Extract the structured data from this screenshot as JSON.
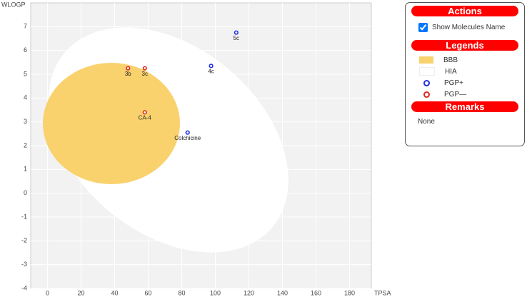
{
  "chart_data": {
    "type": "scatter",
    "xlabel": "TPSA",
    "ylabel": "WLOGP",
    "xlim": [
      -10,
      193
    ],
    "ylim": [
      -4,
      8
    ],
    "xticks": [
      0,
      20,
      40,
      60,
      80,
      100,
      120,
      140,
      160,
      180
    ],
    "yticks": [
      -4,
      -3,
      -2,
      -1,
      0,
      1,
      2,
      3,
      4,
      5,
      6,
      7
    ],
    "grid": true,
    "regions": [
      {
        "name": "BBB",
        "color": "#f9d26e"
      },
      {
        "name": "HIA",
        "color": "#ffffff"
      }
    ],
    "series": [
      {
        "name": "PGP+",
        "color": "#1f2fe0",
        "x": [
          112.5,
          97.5,
          83.5
        ],
        "values": [
          6.75,
          5.35,
          2.55
        ],
        "labels": [
          "5c",
          "4c",
          "Colchicine"
        ]
      },
      {
        "name": "PGP—",
        "color": "#e0281f",
        "x": [
          48,
          58,
          58
        ],
        "values": [
          5.25,
          5.25,
          3.4
        ],
        "labels": [
          "3b",
          "3c",
          "CA-4"
        ]
      }
    ]
  },
  "panel": {
    "actions_title": "Actions",
    "checkbox_label": "Show Molecules Name",
    "legends_title": "Legends",
    "remarks_title": "Remarks",
    "remarks": "None"
  }
}
